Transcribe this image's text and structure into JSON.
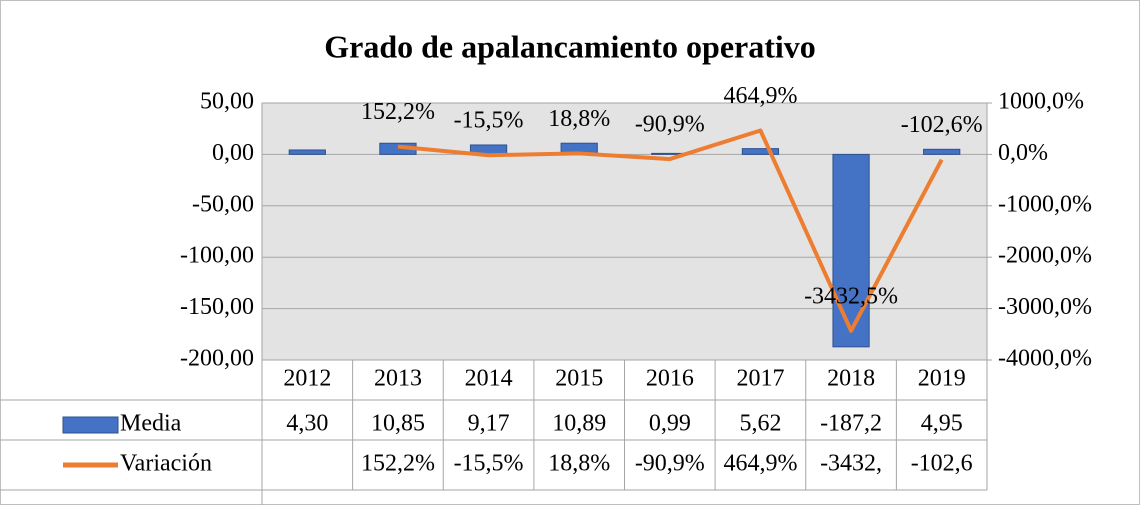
{
  "chart_data": {
    "type": "bar-line",
    "title": "Grado de apalancamiento operativo",
    "categories": [
      "2012",
      "2013",
      "2014",
      "2015",
      "2016",
      "2017",
      "2018",
      "2019"
    ],
    "series": [
      {
        "name": "Media",
        "type": "bar",
        "color": "#4472c4",
        "axis": "y",
        "values": [
          4.3,
          10.85,
          9.17,
          10.89,
          0.99,
          5.62,
          -187.2,
          4.95
        ],
        "table_labels": [
          "4,30",
          "10,85",
          "9,17",
          "10,89",
          "0,99",
          "5,62",
          "-187,2",
          "4,95"
        ]
      },
      {
        "name": "Variación",
        "type": "line",
        "color": "#ed7d31",
        "axis": "y2",
        "values": [
          null,
          152.2,
          -15.5,
          18.8,
          -90.9,
          464.9,
          -3432.5,
          -102.6
        ],
        "value_labels": [
          null,
          "152,2%",
          "-15,5%",
          "18,8%",
          "-90,9%",
          "464,9%",
          "-3432,5%",
          "-102,6%"
        ],
        "table_labels": [
          null,
          "152,2%",
          "-15,5%",
          "18,8%",
          "-90,9%",
          "464,9%",
          "-3432,",
          "-102,6"
        ]
      }
    ],
    "ylim": [
      -200,
      50
    ],
    "yticks": [
      {
        "value": -200,
        "label": "-200,00"
      },
      {
        "value": -150,
        "label": "-150,00"
      },
      {
        "value": -100,
        "label": "-100,00"
      },
      {
        "value": -50,
        "label": "-50,00"
      },
      {
        "value": 0,
        "label": "0,00"
      },
      {
        "value": 50,
        "label": "50,00"
      }
    ],
    "y2lim": [
      -4000,
      1000
    ],
    "y2ticks": [
      {
        "value": -4000,
        "label": "-4000,0%"
      },
      {
        "value": -3000,
        "label": "-3000,0%"
      },
      {
        "value": -2000,
        "label": "-2000,0%"
      },
      {
        "value": -1000,
        "label": "-1000,0%"
      },
      {
        "value": 0,
        "label": "0,0%"
      },
      {
        "value": 1000,
        "label": "1000,0%"
      }
    ],
    "grid": true,
    "plot_background": "#e3e3e3"
  }
}
